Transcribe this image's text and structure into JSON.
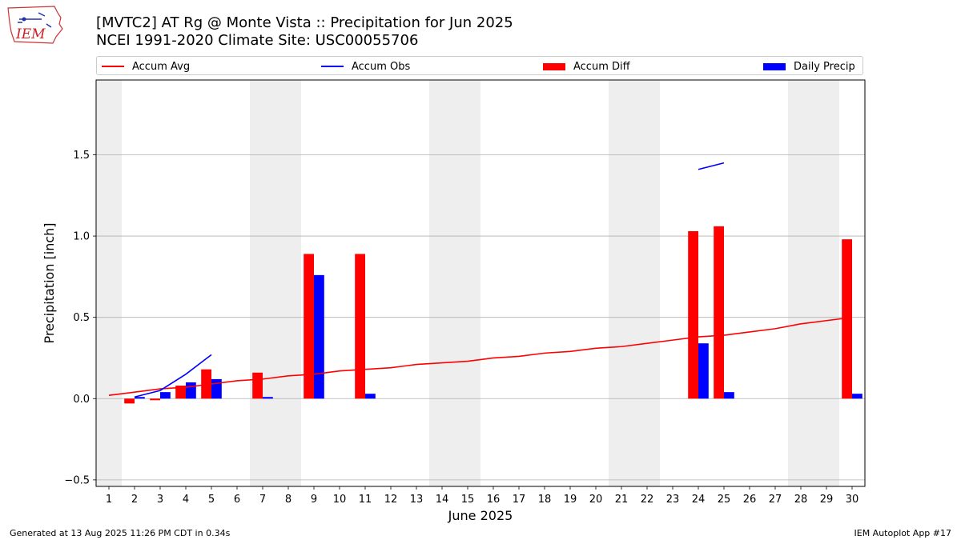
{
  "logo": {
    "text": "IEM",
    "icon": "iowa-state-outline-icon"
  },
  "chart_data": {
    "type": "bar",
    "title": "[MVTC2] AT Rg @ Monte Vista :: Precipitation for Jun 2025",
    "subtitle": "NCEI 1991-2020 Climate Site: USC00055706",
    "xlabel": "June 2025",
    "ylabel": "Precipitation [inch]",
    "ylim": [
      -0.54,
      1.96
    ],
    "xlim": [
      0.5,
      30.5
    ],
    "yticks": [
      -0.5,
      0.0,
      0.5,
      1.0,
      1.5
    ],
    "ytick_labels": [
      "−0.5",
      "0.0",
      "0.5",
      "1.0",
      "1.5"
    ],
    "x": [
      1,
      2,
      3,
      4,
      5,
      6,
      7,
      8,
      9,
      10,
      11,
      12,
      13,
      14,
      15,
      16,
      17,
      18,
      19,
      20,
      21,
      22,
      23,
      24,
      25,
      26,
      27,
      28,
      29,
      30
    ],
    "grid": "horizontal",
    "legend_position": "top",
    "weekend_shading": [
      [
        0.5,
        1.5
      ],
      [
        6.5,
        8.5
      ],
      [
        13.5,
        15.5
      ],
      [
        20.5,
        22.5
      ],
      [
        27.5,
        29.5
      ]
    ],
    "series": [
      {
        "name": "Accum Avg",
        "kind": "line",
        "color": "#ff0000",
        "values": [
          0.02,
          0.04,
          0.06,
          0.07,
          0.09,
          0.11,
          0.12,
          0.14,
          0.15,
          0.17,
          0.18,
          0.19,
          0.21,
          0.22,
          0.23,
          0.25,
          0.26,
          0.28,
          0.29,
          0.31,
          0.32,
          0.34,
          0.36,
          0.38,
          0.39,
          0.41,
          0.43,
          0.46,
          0.48,
          0.5
        ]
      },
      {
        "name": "Accum Obs",
        "kind": "line",
        "color": "#0000ff",
        "segments": [
          {
            "x": [
              2,
              3,
              4,
              5
            ],
            "y": [
              0.01,
              0.05,
              0.15,
              0.27
            ]
          },
          {
            "x": [
              24,
              25
            ],
            "y": [
              1.41,
              1.45
            ]
          }
        ]
      },
      {
        "name": "Accum Diff",
        "kind": "bar",
        "color": "#ff0000",
        "bars": [
          {
            "x": 2,
            "value": -0.03
          },
          {
            "x": 3,
            "value": -0.01
          },
          {
            "x": 4,
            "value": 0.08
          },
          {
            "x": 5,
            "value": 0.18
          },
          {
            "x": 7,
            "value": 0.16
          },
          {
            "x": 9,
            "value": 0.89
          },
          {
            "x": 11,
            "value": 0.89
          },
          {
            "x": 24,
            "value": 1.03
          },
          {
            "x": 25,
            "value": 1.06
          },
          {
            "x": 30,
            "value": 0.98
          }
        ]
      },
      {
        "name": "Daily Precip",
        "kind": "bar",
        "color": "#0000ff",
        "bars": [
          {
            "x": 2,
            "value": 0.01
          },
          {
            "x": 3,
            "value": 0.04
          },
          {
            "x": 4,
            "value": 0.1
          },
          {
            "x": 5,
            "value": 0.12
          },
          {
            "x": 7,
            "value": 0.01
          },
          {
            "x": 9,
            "value": 0.76
          },
          {
            "x": 11,
            "value": 0.03
          },
          {
            "x": 24,
            "value": 0.34
          },
          {
            "x": 25,
            "value": 0.04
          },
          {
            "x": 30,
            "value": 0.03
          }
        ]
      }
    ]
  },
  "footer": {
    "left": "Generated at 13 Aug 2025 11:26 PM CDT in 0.34s",
    "right": "IEM Autoplot App #17"
  }
}
